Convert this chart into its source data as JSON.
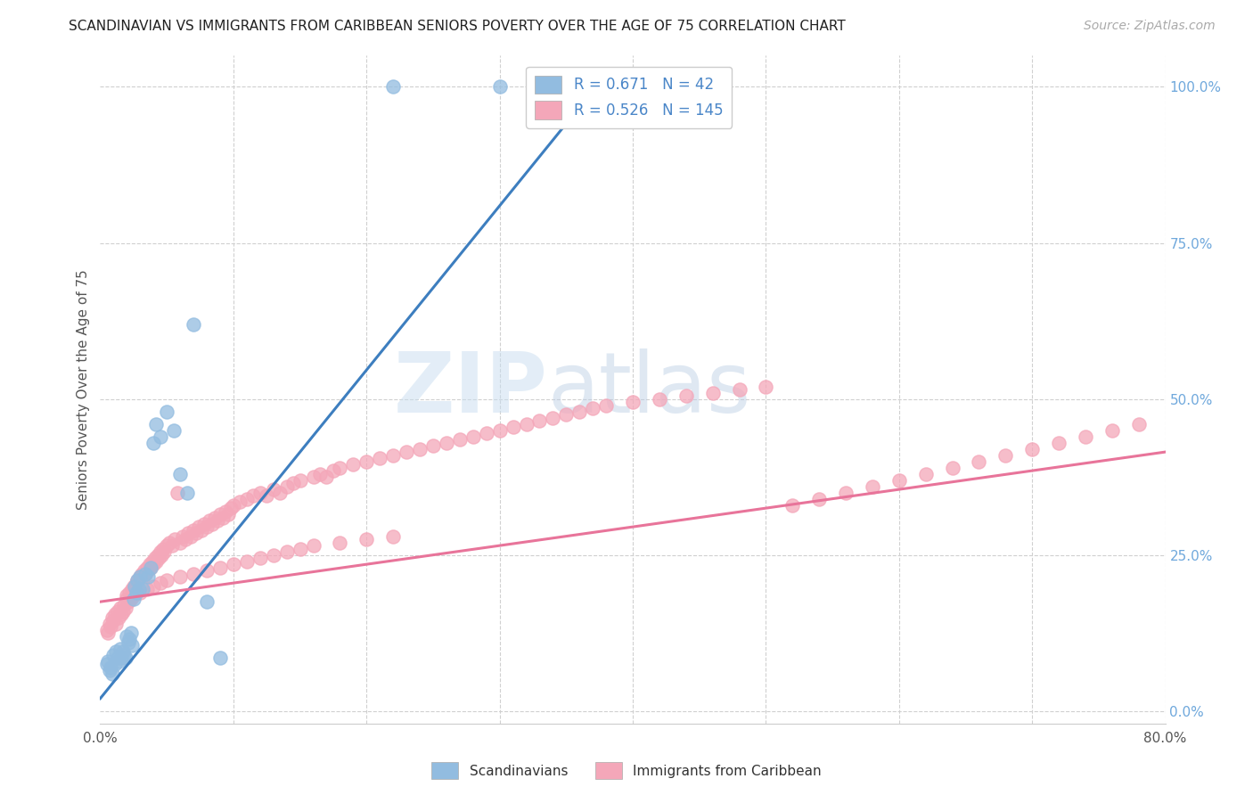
{
  "title": "SCANDINAVIAN VS IMMIGRANTS FROM CARIBBEAN SENIORS POVERTY OVER THE AGE OF 75 CORRELATION CHART",
  "source": "Source: ZipAtlas.com",
  "ylabel": "Seniors Poverty Over the Age of 75",
  "xlim": [
    0.0,
    0.8
  ],
  "ylim": [
    -0.02,
    1.05
  ],
  "y_ticks_right": [
    0.0,
    0.25,
    0.5,
    0.75,
    1.0
  ],
  "y_tick_labels_right": [
    "0.0%",
    "25.0%",
    "50.0%",
    "75.0%",
    "100.0%"
  ],
  "legend_blue_R": "0.671",
  "legend_blue_N": "42",
  "legend_pink_R": "0.526",
  "legend_pink_N": "145",
  "blue_color": "#92bce0",
  "pink_color": "#f4a7b9",
  "blue_line_color": "#3d7ebf",
  "pink_line_color": "#e8749a",
  "watermark_zip": "ZIP",
  "watermark_atlas": "atlas",
  "blue_line_x0": 0.0,
  "blue_line_y0": 0.02,
  "blue_line_x1": 0.38,
  "blue_line_y1": 1.02,
  "pink_line_x0": 0.0,
  "pink_line_y0": 0.175,
  "pink_line_x1": 0.8,
  "pink_line_y1": 0.415,
  "blue_scatter_x": [
    0.005,
    0.006,
    0.007,
    0.008,
    0.009,
    0.01,
    0.011,
    0.012,
    0.013,
    0.014,
    0.015,
    0.016,
    0.017,
    0.018,
    0.019,
    0.02,
    0.021,
    0.022,
    0.023,
    0.024,
    0.025,
    0.026,
    0.027,
    0.028,
    0.029,
    0.03,
    0.032,
    0.034,
    0.036,
    0.038,
    0.04,
    0.042,
    0.045,
    0.05,
    0.055,
    0.06,
    0.065,
    0.07,
    0.08,
    0.09,
    0.22,
    0.3
  ],
  "blue_scatter_y": [
    0.075,
    0.08,
    0.065,
    0.07,
    0.06,
    0.09,
    0.075,
    0.095,
    0.085,
    0.08,
    0.1,
    0.085,
    0.095,
    0.09,
    0.085,
    0.12,
    0.11,
    0.115,
    0.125,
    0.105,
    0.18,
    0.2,
    0.19,
    0.21,
    0.195,
    0.215,
    0.195,
    0.22,
    0.215,
    0.23,
    0.43,
    0.46,
    0.44,
    0.48,
    0.45,
    0.38,
    0.35,
    0.62,
    0.175,
    0.085,
    1.0,
    1.0
  ],
  "pink_scatter_x": [
    0.005,
    0.006,
    0.007,
    0.008,
    0.009,
    0.01,
    0.011,
    0.012,
    0.013,
    0.014,
    0.015,
    0.016,
    0.017,
    0.018,
    0.019,
    0.02,
    0.021,
    0.022,
    0.023,
    0.024,
    0.025,
    0.026,
    0.027,
    0.028,
    0.03,
    0.031,
    0.032,
    0.033,
    0.034,
    0.035,
    0.036,
    0.037,
    0.038,
    0.039,
    0.04,
    0.041,
    0.042,
    0.043,
    0.044,
    0.045,
    0.046,
    0.047,
    0.048,
    0.05,
    0.052,
    0.054,
    0.056,
    0.058,
    0.06,
    0.062,
    0.064,
    0.066,
    0.068,
    0.07,
    0.072,
    0.074,
    0.076,
    0.078,
    0.08,
    0.082,
    0.084,
    0.086,
    0.088,
    0.09,
    0.092,
    0.094,
    0.096,
    0.098,
    0.1,
    0.105,
    0.11,
    0.115,
    0.12,
    0.125,
    0.13,
    0.135,
    0.14,
    0.145,
    0.15,
    0.16,
    0.165,
    0.17,
    0.175,
    0.18,
    0.19,
    0.2,
    0.21,
    0.22,
    0.23,
    0.24,
    0.25,
    0.26,
    0.27,
    0.28,
    0.29,
    0.3,
    0.31,
    0.32,
    0.33,
    0.34,
    0.35,
    0.36,
    0.37,
    0.38,
    0.4,
    0.42,
    0.44,
    0.46,
    0.48,
    0.5,
    0.52,
    0.54,
    0.56,
    0.58,
    0.6,
    0.62,
    0.64,
    0.66,
    0.68,
    0.7,
    0.72,
    0.74,
    0.76,
    0.78,
    0.02,
    0.025,
    0.03,
    0.035,
    0.04,
    0.045,
    0.05,
    0.06,
    0.07,
    0.08,
    0.09,
    0.1,
    0.11,
    0.12,
    0.13,
    0.14,
    0.15,
    0.16,
    0.18,
    0.2,
    0.22
  ],
  "pink_scatter_y": [
    0.13,
    0.125,
    0.14,
    0.135,
    0.15,
    0.145,
    0.155,
    0.14,
    0.16,
    0.15,
    0.165,
    0.155,
    0.16,
    0.17,
    0.165,
    0.185,
    0.175,
    0.19,
    0.18,
    0.195,
    0.2,
    0.195,
    0.205,
    0.21,
    0.215,
    0.22,
    0.215,
    0.225,
    0.22,
    0.23,
    0.225,
    0.235,
    0.23,
    0.24,
    0.235,
    0.245,
    0.24,
    0.25,
    0.245,
    0.255,
    0.25,
    0.26,
    0.255,
    0.265,
    0.27,
    0.265,
    0.275,
    0.35,
    0.27,
    0.28,
    0.275,
    0.285,
    0.28,
    0.29,
    0.285,
    0.295,
    0.29,
    0.3,
    0.295,
    0.305,
    0.3,
    0.31,
    0.305,
    0.315,
    0.31,
    0.32,
    0.315,
    0.325,
    0.33,
    0.335,
    0.34,
    0.345,
    0.35,
    0.345,
    0.355,
    0.35,
    0.36,
    0.365,
    0.37,
    0.375,
    0.38,
    0.375,
    0.385,
    0.39,
    0.395,
    0.4,
    0.405,
    0.41,
    0.415,
    0.42,
    0.425,
    0.43,
    0.435,
    0.44,
    0.445,
    0.45,
    0.455,
    0.46,
    0.465,
    0.47,
    0.475,
    0.48,
    0.485,
    0.49,
    0.495,
    0.5,
    0.505,
    0.51,
    0.515,
    0.52,
    0.33,
    0.34,
    0.35,
    0.36,
    0.37,
    0.38,
    0.39,
    0.4,
    0.41,
    0.42,
    0.43,
    0.44,
    0.45,
    0.46,
    0.18,
    0.185,
    0.19,
    0.195,
    0.2,
    0.205,
    0.21,
    0.215,
    0.22,
    0.225,
    0.23,
    0.235,
    0.24,
    0.245,
    0.25,
    0.255,
    0.26,
    0.265,
    0.27,
    0.275,
    0.28
  ]
}
